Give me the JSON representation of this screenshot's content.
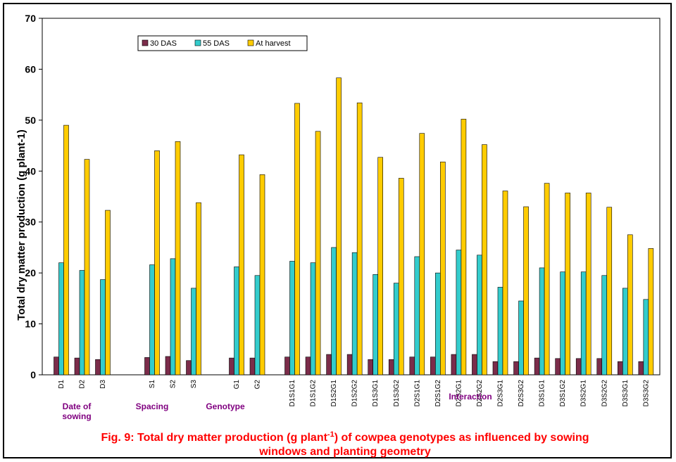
{
  "chart_data": {
    "type": "bar",
    "ylabel": "Total dry matter production (g plant-1)",
    "ylim": [
      0,
      70
    ],
    "yticks": [
      "0",
      "10",
      "20",
      "30",
      "40",
      "50",
      "60",
      "70"
    ],
    "categories": [
      "D1",
      "D2",
      "D3",
      "S1",
      "S2",
      "S3",
      "G1",
      "G2",
      "D1S1G1",
      "D1S1G2",
      "D1S2G1",
      "D1S2G2",
      "D1S3G1",
      "D1S3G2",
      "D2S1G1",
      "D2S1G2",
      "D2S2G1",
      "D2S2G2",
      "D2S3G1",
      "D2S3G2",
      "D3S1G1",
      "D3S1G2",
      "D3S2G1",
      "D3S2G2",
      "D3S3G1",
      "D3S3G2"
    ],
    "group_index": [
      0,
      0,
      0,
      1,
      1,
      1,
      2,
      2,
      3,
      3,
      3,
      3,
      3,
      3,
      3,
      3,
      3,
      3,
      3,
      3,
      3,
      3,
      3,
      3,
      3,
      3
    ],
    "groups": [
      {
        "label_lines": [
          "Date of",
          "sowing"
        ]
      },
      {
        "label_lines": [
          "Spacing"
        ]
      },
      {
        "label_lines": [
          "Genotype"
        ]
      },
      {
        "label_lines": [
          "Interaction"
        ]
      }
    ],
    "series": [
      {
        "name": "30 DAS",
        "color": "#7b2c4a",
        "values": [
          3.5,
          3.3,
          3.0,
          3.4,
          3.6,
          2.8,
          3.3,
          3.3,
          3.5,
          3.5,
          4.0,
          4.0,
          3.0,
          3.0,
          3.5,
          3.5,
          4.0,
          4.0,
          2.6,
          2.6,
          3.3,
          3.2,
          3.2,
          3.2,
          2.6,
          2.6
        ]
      },
      {
        "name": "55 DAS",
        "color": "#33cccc",
        "values": [
          22.0,
          20.5,
          18.7,
          21.6,
          22.8,
          17.0,
          21.2,
          19.5,
          22.3,
          22.0,
          25.0,
          24.0,
          19.7,
          18.0,
          23.2,
          20.0,
          24.5,
          23.5,
          17.2,
          14.5,
          21.0,
          20.2,
          20.2,
          19.5,
          17.0,
          14.8
        ]
      },
      {
        "name": "At harvest",
        "color": "#ffcc00",
        "values": [
          49.0,
          42.3,
          32.3,
          44.0,
          45.8,
          33.8,
          43.2,
          39.3,
          53.3,
          47.8,
          58.3,
          53.4,
          42.7,
          38.6,
          47.4,
          41.8,
          50.2,
          45.2,
          36.1,
          33.0,
          37.6,
          35.7,
          35.7,
          32.9,
          27.5,
          24.8
        ]
      }
    ],
    "legend_position": "top-left",
    "grid": false,
    "caption": {
      "line1_pre": "Fig. 9: Total dry matter production (g plant",
      "line1_sup": "-1",
      "line1_post": ") of cowpea genotypes as influenced by sowing",
      "line2": "windows and planting geometry"
    }
  }
}
